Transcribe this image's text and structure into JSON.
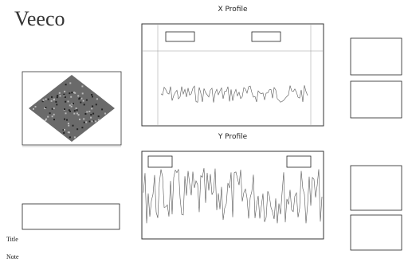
{
  "header": {
    "logo": "Veeco"
  },
  "x_profile": {
    "title": "X Profile"
  },
  "y_profile": {
    "title": "Y Profile"
  },
  "footer": {
    "title": "Title",
    "note": "Note"
  }
}
